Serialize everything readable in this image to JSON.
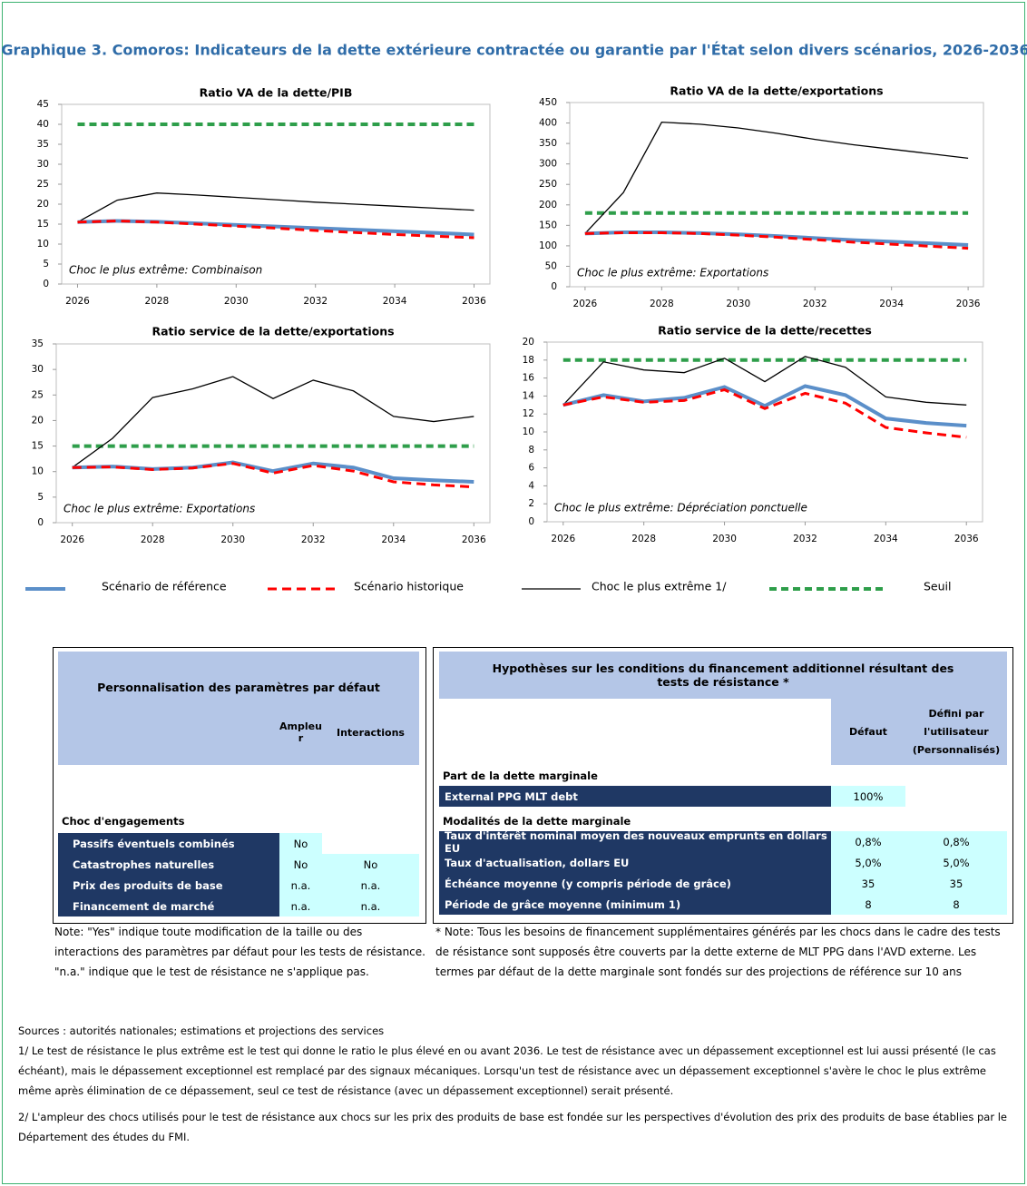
{
  "title": "Graphique 3. Comoros: Indicateurs de la dette extérieure contractée ou garantie par l'État selon divers scénarios, 2026-2036",
  "chart_data": [
    {
      "type": "line",
      "title": "Ratio VA de la dette/PIB",
      "annotation": "Choc le plus extrême: Combinaison",
      "x": [
        2026,
        2027,
        2028,
        2029,
        2030,
        2031,
        2032,
        2033,
        2034,
        2035,
        2036
      ],
      "xlim": [
        2025.6,
        2036.4
      ],
      "xticks": [
        2026,
        2028,
        2030,
        2032,
        2034,
        2036
      ],
      "ylim": [
        0,
        45
      ],
      "yticks": [
        0,
        5,
        10,
        15,
        20,
        25,
        30,
        35,
        40,
        45
      ],
      "grid": false,
      "series": [
        {
          "name": "Scénario de référence",
          "color": "#5b8fc9",
          "linestyle": "solid",
          "values": [
            15.5,
            15.8,
            15.6,
            15.2,
            14.8,
            14.4,
            14.0,
            13.6,
            13.2,
            12.8,
            12.4
          ]
        },
        {
          "name": "Scénario historique",
          "color": "#ff0000",
          "linestyle": "dashed",
          "values": [
            15.5,
            15.8,
            15.5,
            15.0,
            14.5,
            14.0,
            13.4,
            12.9,
            12.4,
            12.0,
            11.6
          ]
        },
        {
          "name": "Choc le plus extrême 1/",
          "color": "#000000",
          "linestyle": "solid",
          "values": [
            15.5,
            21.0,
            22.8,
            22.3,
            21.7,
            21.1,
            20.5,
            20.0,
            19.5,
            19.0,
            18.5
          ]
        },
        {
          "name": "Seuil",
          "color": "#2e9e4a",
          "linestyle": "dashed",
          "values": [
            40,
            40,
            40,
            40,
            40,
            40,
            40,
            40,
            40,
            40,
            40
          ]
        }
      ]
    },
    {
      "type": "line",
      "title": "Ratio VA de la dette/exportations",
      "annotation": "Choc le plus extrême: Exportations",
      "x": [
        2026,
        2027,
        2028,
        2029,
        2030,
        2031,
        2032,
        2033,
        2034,
        2035,
        2036
      ],
      "xlim": [
        2025.6,
        2036.4
      ],
      "xticks": [
        2026,
        2028,
        2030,
        2032,
        2034,
        2036
      ],
      "ylim": [
        0,
        450
      ],
      "yticks": [
        0,
        50,
        100,
        150,
        200,
        250,
        300,
        350,
        400,
        450
      ],
      "grid": false,
      "series": [
        {
          "name": "Scénario de référence",
          "color": "#5b8fc9",
          "linestyle": "solid",
          "values": [
            130,
            133,
            133,
            131,
            128,
            124,
            119,
            114,
            110,
            106,
            102
          ]
        },
        {
          "name": "Scénario historique",
          "color": "#ff0000",
          "linestyle": "dashed",
          "values": [
            130,
            132,
            132,
            130,
            126,
            121,
            115,
            109,
            104,
            99,
            94
          ]
        },
        {
          "name": "Choc le plus extrême 1/",
          "color": "#000000",
          "linestyle": "solid",
          "values": [
            130,
            230,
            402,
            397,
            388,
            375,
            360,
            347,
            336,
            325,
            314
          ]
        },
        {
          "name": "Seuil",
          "color": "#2e9e4a",
          "linestyle": "dashed",
          "values": [
            180,
            180,
            180,
            180,
            180,
            180,
            180,
            180,
            180,
            180,
            180
          ]
        }
      ]
    },
    {
      "type": "line",
      "title": "Ratio service de la dette/exportations",
      "annotation": "Choc le plus extrême: Exportations",
      "x": [
        2026,
        2027,
        2028,
        2029,
        2030,
        2031,
        2032,
        2033,
        2034,
        2035,
        2036
      ],
      "xlim": [
        2025.6,
        2036.4
      ],
      "xticks": [
        2026,
        2028,
        2030,
        2032,
        2034,
        2036
      ],
      "ylim": [
        0,
        35
      ],
      "yticks": [
        0,
        5,
        10,
        15,
        20,
        25,
        30,
        35
      ],
      "grid": false,
      "series": [
        {
          "name": "Scénario de référence",
          "color": "#5b8fc9",
          "linestyle": "solid",
          "values": [
            10.8,
            11.0,
            10.5,
            10.8,
            11.8,
            10.1,
            11.6,
            10.8,
            8.7,
            8.3,
            8.0
          ]
        },
        {
          "name": "Scénario historique",
          "color": "#ff0000",
          "linestyle": "dashed",
          "values": [
            10.8,
            10.9,
            10.4,
            10.7,
            11.6,
            9.7,
            11.2,
            10.1,
            8.0,
            7.4,
            7.0
          ]
        },
        {
          "name": "Choc le plus extrême 1/",
          "color": "#000000",
          "linestyle": "solid",
          "values": [
            10.8,
            16.5,
            24.5,
            26.2,
            28.6,
            24.3,
            27.9,
            25.8,
            20.8,
            19.8,
            20.8
          ]
        },
        {
          "name": "Seuil",
          "color": "#2e9e4a",
          "linestyle": "dashed",
          "values": [
            15,
            15,
            15,
            15,
            15,
            15,
            15,
            15,
            15,
            15,
            15
          ]
        }
      ]
    },
    {
      "type": "line",
      "title": "Ratio service de la dette/recettes",
      "annotation": "Choc le plus extrême: Dépréciation ponctuelle",
      "x": [
        2026,
        2027,
        2028,
        2029,
        2030,
        2031,
        2032,
        2033,
        2034,
        2035,
        2036
      ],
      "xlim": [
        2025.6,
        2036.4
      ],
      "xticks": [
        2026,
        2028,
        2030,
        2032,
        2034,
        2036
      ],
      "ylim": [
        0,
        20
      ],
      "yticks": [
        0,
        2,
        4,
        6,
        8,
        10,
        12,
        14,
        16,
        18,
        20
      ],
      "grid": false,
      "series": [
        {
          "name": "Scénario de référence",
          "color": "#5b8fc9",
          "linestyle": "solid",
          "values": [
            13.0,
            14.1,
            13.4,
            13.8,
            15.0,
            12.9,
            15.1,
            14.1,
            11.5,
            11.0,
            10.7
          ]
        },
        {
          "name": "Scénario historique",
          "color": "#ff0000",
          "linestyle": "dashed",
          "values": [
            13.0,
            13.9,
            13.3,
            13.5,
            14.7,
            12.6,
            14.3,
            13.2,
            10.5,
            9.9,
            9.4
          ]
        },
        {
          "name": "Choc le plus extrême 1/",
          "color": "#000000",
          "linestyle": "solid",
          "values": [
            13.0,
            17.8,
            16.9,
            16.6,
            18.2,
            15.6,
            18.4,
            17.2,
            13.9,
            13.3,
            13.0
          ]
        },
        {
          "name": "Seuil",
          "color": "#2e9e4a",
          "linestyle": "dashed",
          "values": [
            18,
            18,
            18,
            18,
            18,
            18,
            18,
            18,
            18,
            18,
            18
          ]
        }
      ]
    }
  ],
  "left_table": {
    "title": "Personnalisation des paramètres par défaut",
    "columns": [
      "Ampleur",
      "Interactions"
    ],
    "section": "Choc d'engagements",
    "rows": [
      [
        "Passifs éventuels combinés",
        "No"
      ],
      [
        "Catastrophes naturelles",
        "No",
        "No"
      ],
      [
        "Prix des produits de base",
        "n.a.",
        "n.a."
      ],
      [
        "Financement de marché",
        "n.a.",
        "n.a."
      ]
    ],
    "note": "Note: \"Yes\" indique toute modification de la taille ou des interactions des paramètres par défaut pour les tests de résistance. \"n.a.\" indique que le test de résistance ne s'applique pas."
  },
  "right_table": {
    "title": "Hypothèses sur les conditions du financement additionnel résultant des tests de résistance *",
    "columns": [
      "Défaut",
      "Défini par l'utilisateur (Personnalisés)"
    ],
    "sections": [
      {
        "title": "Part de la dette marginale",
        "rows": [
          [
            "External PPG MLT debt",
            "100%"
          ]
        ]
      },
      {
        "title": "Modalités de la dette marginale",
        "rows": [
          [
            "Taux d'intérêt nominal moyen des nouveaux emprunts en dollars EU",
            "0,8%",
            "0,8%"
          ],
          [
            "Taux d'actualisation, dollars EU",
            "5,0%",
            "5,0%"
          ],
          [
            "Échéance moyenne (y compris période de grâce)",
            "35",
            "35"
          ],
          [
            "Période de grâce moyenne (minimum 1)",
            "8",
            "8"
          ]
        ]
      }
    ],
    "note": "* Note: Tous les besoins de financement supplémentaires générés par les chocs dans le cadre des tests de résistance sont supposés être couverts par la dette externe de MLT PPG dans l'AVD externe. Les termes par défaut de la dette marginale sont fondés sur des projections de référence sur 10 ans"
  },
  "sources": "Sources : autorités nationales; estimations et projections des services",
  "footnotes": [
    "1/ Le test de résistance le plus extrême est le test qui donne le ratio le plus élevé en ou avant 2036. Le test de résistance avec un dépassement exceptionnel est lui aussi présenté (le cas échéant), mais le dépassement exceptionnel est remplacé par des signaux mécaniques. Lorsqu'un test de résistance avec un dépassement exceptionnel s'avère le choc le plus extrême même après élimination de ce dépassement, seul ce test de résistance (avec un dépassement exceptionnel) serait présenté.",
    "2/ L'ampleur des chocs utilisés pour le test de résistance aux chocs sur les prix des produits de base est fondée sur les perspectives d'évolution des prix des produits de base établies par le Département des études du FMI."
  ]
}
